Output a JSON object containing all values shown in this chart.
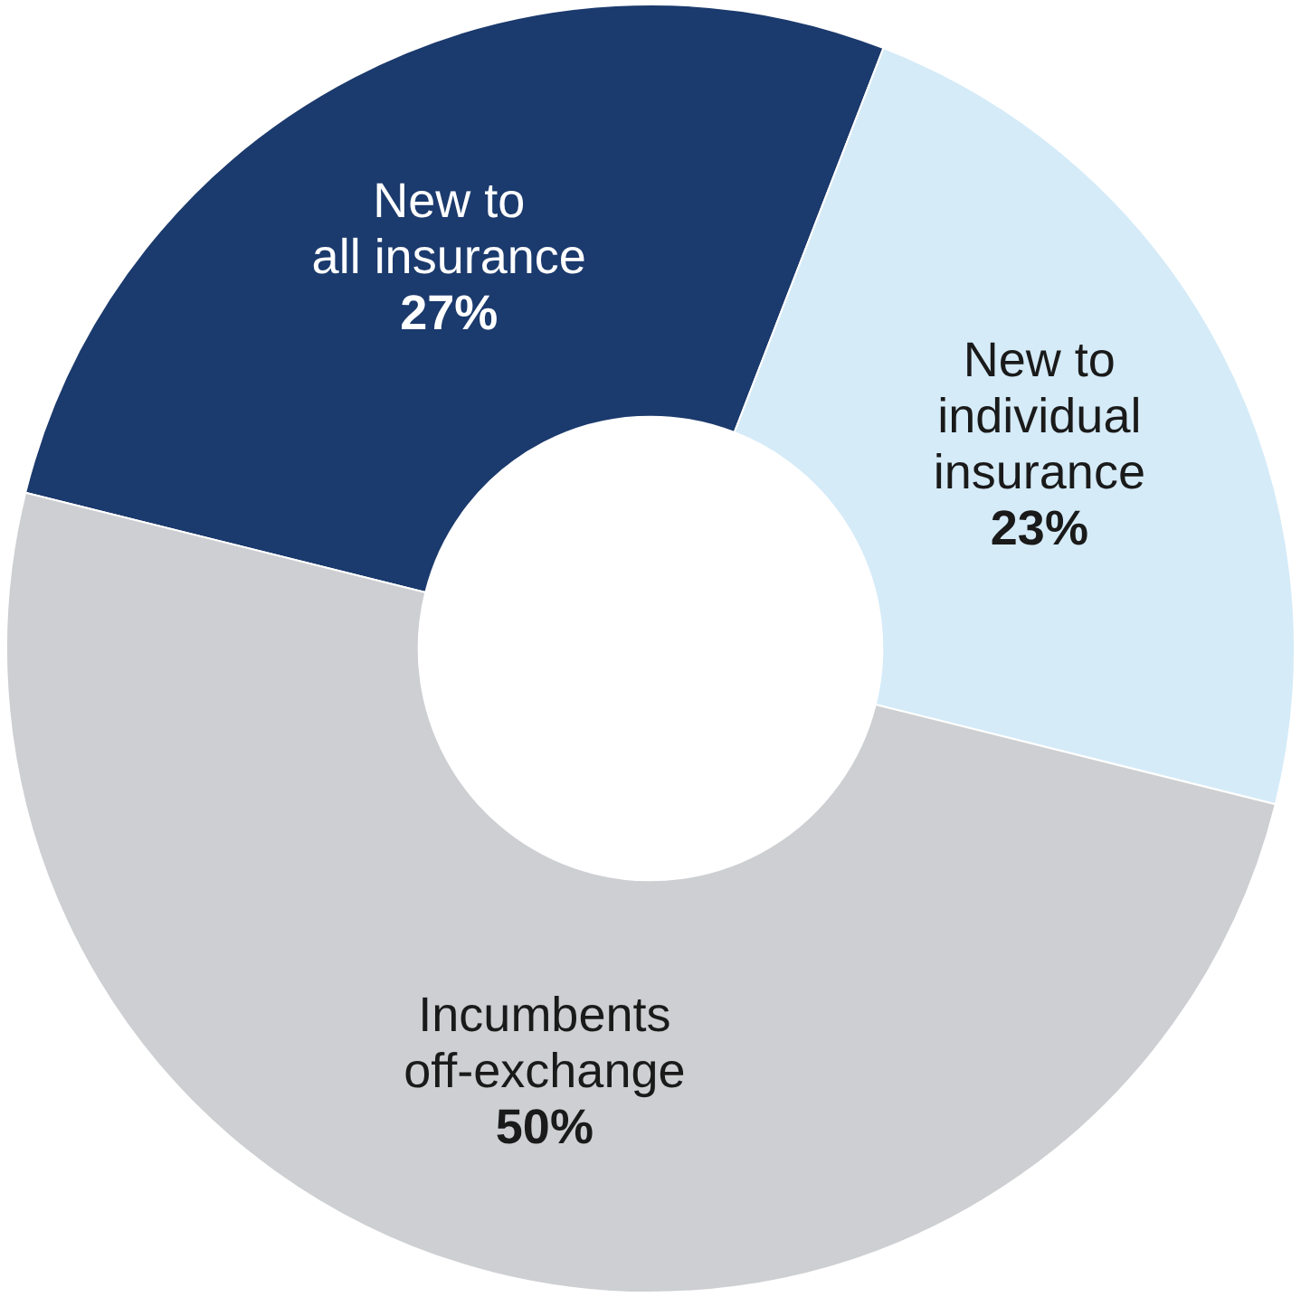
{
  "chart_data": {
    "type": "donut",
    "categories": [
      "New to\nall insurance",
      "New to\nindividual\ninsurance",
      "Incumbents\noff-exchange"
    ],
    "values": [
      27,
      23,
      50
    ],
    "colors": [
      "#1b3a6d",
      "#d5ebf8",
      "#cdcfd2"
    ],
    "value_labels": [
      "27%",
      "23%",
      "50%"
    ],
    "legend": false
  }
}
